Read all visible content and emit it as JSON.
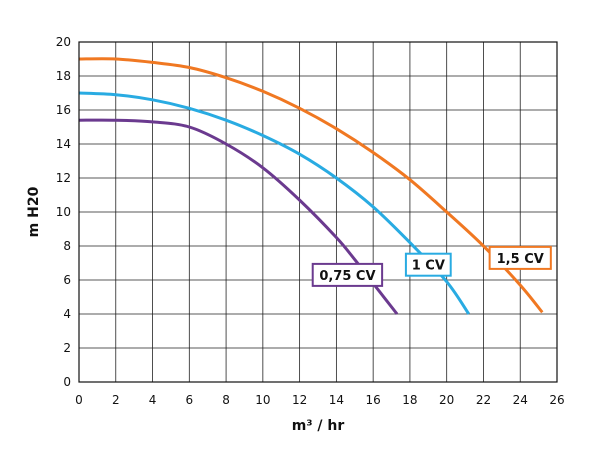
{
  "chart_data": {
    "type": "line",
    "title": "",
    "xlabel": "m³ / hr",
    "ylabel": "m H20",
    "xlim": [
      0,
      26
    ],
    "ylim": [
      0,
      20
    ],
    "x_ticks": [
      0,
      2,
      4,
      6,
      8,
      10,
      12,
      14,
      16,
      18,
      20,
      22,
      24,
      26
    ],
    "y_ticks": [
      0,
      2,
      4,
      6,
      8,
      10,
      12,
      14,
      16,
      18,
      20
    ],
    "grid": true,
    "series": [
      {
        "name": "0,75 CV",
        "color": "#6b3a8f",
        "points": [
          [
            0,
            15.4
          ],
          [
            2,
            15.4
          ],
          [
            4,
            15.3
          ],
          [
            6,
            15.0
          ],
          [
            8,
            14.0
          ],
          [
            10,
            12.6
          ],
          [
            12,
            10.7
          ],
          [
            14,
            8.5
          ],
          [
            15,
            7.2
          ],
          [
            16,
            5.8
          ],
          [
            17.3,
            4.0
          ]
        ]
      },
      {
        "name": "1 CV",
        "color": "#29abe2",
        "points": [
          [
            0,
            17.0
          ],
          [
            2,
            16.9
          ],
          [
            4,
            16.6
          ],
          [
            6,
            16.1
          ],
          [
            8,
            15.4
          ],
          [
            10,
            14.5
          ],
          [
            12,
            13.4
          ],
          [
            14,
            12.0
          ],
          [
            16,
            10.3
          ],
          [
            18,
            8.2
          ],
          [
            20,
            5.9
          ],
          [
            21.2,
            4.0
          ]
        ]
      },
      {
        "name": "1,5 CV",
        "color": "#f07822",
        "points": [
          [
            0,
            19.0
          ],
          [
            2,
            19.0
          ],
          [
            4,
            18.8
          ],
          [
            6,
            18.5
          ],
          [
            8,
            17.9
          ],
          [
            10,
            17.1
          ],
          [
            12,
            16.1
          ],
          [
            14,
            14.9
          ],
          [
            16,
            13.5
          ],
          [
            18,
            11.9
          ],
          [
            20,
            10.0
          ],
          [
            22,
            8.0
          ],
          [
            24,
            5.7
          ],
          [
            25.2,
            4.1
          ]
        ]
      }
    ],
    "legend_labels": [
      {
        "series": "0,75 CV",
        "x": 14.6,
        "y": 6.3
      },
      {
        "series": "1 CV",
        "x": 19.0,
        "y": 6.9
      },
      {
        "series": "1,5 CV",
        "x": 24.0,
        "y": 7.3
      }
    ]
  }
}
